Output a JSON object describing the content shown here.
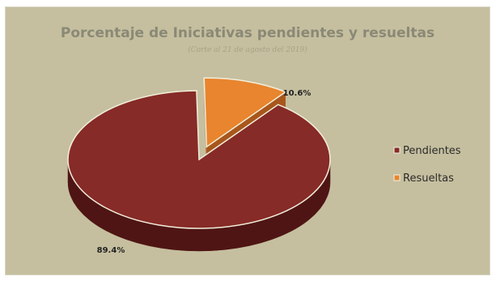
{
  "chart_data": {
    "type": "pie",
    "title": "Porcentaje de Iniciativas pendientes y resueltas",
    "subtitle": "(Corte al 21 de agosto del 2019)",
    "categories": [
      "Pendientes",
      "Resueltas"
    ],
    "values": [
      89.4,
      10.6
    ],
    "data_labels": [
      "89.4%",
      "10.6%"
    ],
    "legend_position": "right",
    "style": "3d-exploded"
  },
  "colors": {
    "background": "#c5bf9f",
    "title": "#8a8976",
    "subtitle": "#a7a286",
    "pendientes": "#862b27",
    "pendientes_side": "#4f1514",
    "resueltas": "#e8852e",
    "resueltas_side": "#a8571c",
    "label_text": "#222222",
    "slice_border": "#f2eedb"
  }
}
